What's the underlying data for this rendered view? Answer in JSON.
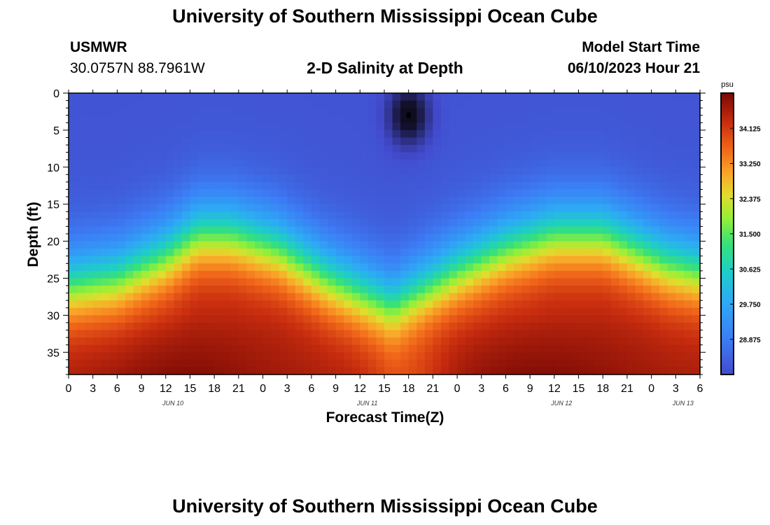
{
  "page": {
    "title_top": "University of Southern Mississippi Ocean Cube",
    "title_bottom": "University of Southern Mississippi Ocean Cube",
    "station_id": "USMWR",
    "coordinates": "30.0757N  88.7961W",
    "plot_title": "2-D Salinity at Depth",
    "model_start_label": "Model Start Time",
    "model_start_value": "06/10/2023 Hour 21"
  },
  "chart_data": {
    "type": "heatmap",
    "title": "2-D Salinity at Depth",
    "xlabel": "Forecast Time(Z)",
    "ylabel": "Depth (ft)",
    "x_tick_labels": [
      "0",
      "3",
      "6",
      "9",
      "12",
      "15",
      "18",
      "21",
      "0",
      "3",
      "6",
      "9",
      "12",
      "15",
      "18",
      "21",
      "0",
      "3",
      "6",
      "9",
      "12",
      "15",
      "18",
      "21",
      "0",
      "3",
      "6"
    ],
    "date_labels": [
      {
        "text": "JUN 10",
        "hour_index": 4.3
      },
      {
        "text": "JUN 11",
        "hour_index": 12.3
      },
      {
        "text": "JUN 12",
        "hour_index": 20.3
      },
      {
        "text": "JUN 13",
        "hour_index": 25.3
      }
    ],
    "x_range_hours": [
      0,
      78
    ],
    "y_range_ft": [
      0,
      38
    ],
    "y_ticks": [
      0,
      5,
      10,
      15,
      20,
      25,
      30,
      35
    ],
    "colorbar": {
      "unit": "psu",
      "min": 28.0,
      "max": 35.0,
      "tick_values": [
        28.875,
        29.75,
        30.625,
        31.5,
        32.375,
        33.25,
        34.125
      ],
      "tick_labels": [
        "28.875",
        "29.750",
        "30.625",
        "31.500",
        "32.375",
        "33.250",
        "34.125"
      ]
    },
    "halocline_depth_ft": {
      "hours": [
        0,
        6,
        12,
        16,
        20,
        26,
        32,
        40,
        48,
        54,
        60,
        66,
        70,
        74,
        78
      ],
      "depth": [
        26,
        25,
        22,
        19,
        19,
        21,
        25,
        29,
        24,
        21,
        19,
        19,
        21,
        23,
        24
      ]
    },
    "surface_salinity_psu": 28.2,
    "bottom_salinity_psu": 34.6,
    "low_salinity_anomaly": {
      "hour": 42,
      "depth_ft": 3,
      "value_psu": "below 28.0"
    }
  }
}
